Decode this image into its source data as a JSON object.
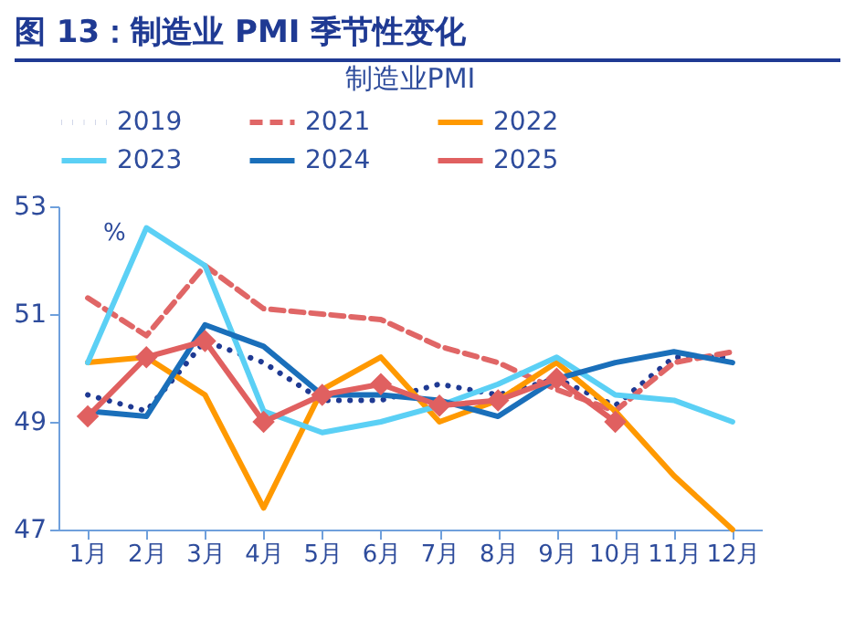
{
  "chart_data": {
    "type": "line",
    "title": "图 13：制造业 PMI 季节性变化",
    "subtitle": "制造业PMI",
    "ylabel": "%",
    "categories": [
      "1月",
      "2月",
      "3月",
      "4月",
      "5月",
      "6月",
      "7月",
      "8月",
      "9月",
      "10月",
      "11月",
      "12月"
    ],
    "series": [
      {
        "name": "2019",
        "color": "#1f3a93",
        "line_style": "dotted",
        "values": [
          49.5,
          49.2,
          50.5,
          50.1,
          49.4,
          49.4,
          49.7,
          49.5,
          49.8,
          49.3,
          50.2,
          50.2
        ]
      },
      {
        "name": "2021",
        "color": "#e06666",
        "line_style": "dashed",
        "values": [
          51.3,
          50.6,
          51.9,
          51.1,
          51.0,
          50.9,
          50.4,
          50.1,
          49.6,
          49.2,
          50.1,
          50.3
        ]
      },
      {
        "name": "2022",
        "color": "#ff9900",
        "line_style": "solid",
        "values": [
          50.1,
          50.2,
          49.5,
          47.4,
          49.6,
          50.2,
          49.0,
          49.4,
          50.1,
          49.2,
          48.0,
          47.0
        ]
      },
      {
        "name": "2023",
        "color": "#5bd0f5",
        "line_style": "solid",
        "values": [
          50.1,
          52.6,
          51.9,
          49.2,
          48.8,
          49.0,
          49.3,
          49.7,
          50.2,
          49.5,
          49.4,
          49.0
        ]
      },
      {
        "name": "2024",
        "color": "#1a6fba",
        "line_style": "solid",
        "values": [
          49.2,
          49.1,
          50.8,
          50.4,
          49.5,
          49.5,
          49.4,
          49.1,
          49.8,
          50.1,
          50.3,
          50.1
        ]
      },
      {
        "name": "2025",
        "color": "#e06060",
        "line_style": "solid",
        "marker": "diamond",
        "values": [
          49.1,
          50.2,
          50.5,
          49.0,
          49.5,
          49.7,
          49.3,
          49.4,
          49.8,
          49.0,
          null,
          null
        ]
      }
    ],
    "ylim": [
      47,
      53
    ],
    "yticks": [
      47,
      49,
      51,
      53
    ],
    "grid": false,
    "legend": "top"
  }
}
